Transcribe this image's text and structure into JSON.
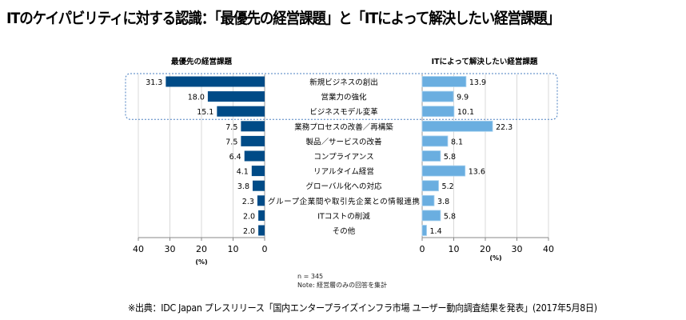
{
  "title": "ITのケイパビリティに対する認識：「最優先の経営課題」と「ITによって解決したい経営課題」",
  "chart_data": {
    "type": "bar",
    "orientation": "horizontal-butterfly",
    "categories": [
      "新規ビジネスの創出",
      "営業力の強化",
      "ビジネスモデル変革",
      "業務プロセスの改善／再構築",
      "製品／サービスの改善",
      "コンプライアンス",
      "リアルタイム経営",
      "グローバル化への対応",
      "グループ企業間や取引先企業との情報連携",
      "ITコストの削減",
      "その他"
    ],
    "series": [
      {
        "name": "最優先の経営課題",
        "side": "left",
        "color": "#004b87",
        "values": [
          31.3,
          18.0,
          15.1,
          7.5,
          7.5,
          6.4,
          4.1,
          3.8,
          2.3,
          2.0,
          2.0
        ]
      },
      {
        "name": "ITによって解決したい経営課題",
        "side": "right",
        "color": "#6aaee0",
        "values": [
          13.9,
          9.9,
          10.1,
          22.3,
          8.1,
          5.8,
          13.6,
          5.2,
          3.8,
          5.8,
          1.4
        ]
      }
    ],
    "xlim": [
      0,
      40
    ],
    "ticks": [
      "0",
      "10",
      "20",
      "30",
      "40"
    ],
    "xlabel": "(%)",
    "grid": true,
    "highlight_categories": [
      0,
      1,
      2
    ]
  },
  "notes": [
    "n = 345",
    "Note: 経営層のみの回答を集計"
  ],
  "source": "※出典：IDC Japan プレスリリース「国内エンタープライズインフラ市場 ユーザー動向調査結果を発表」(2017年5月8日)"
}
